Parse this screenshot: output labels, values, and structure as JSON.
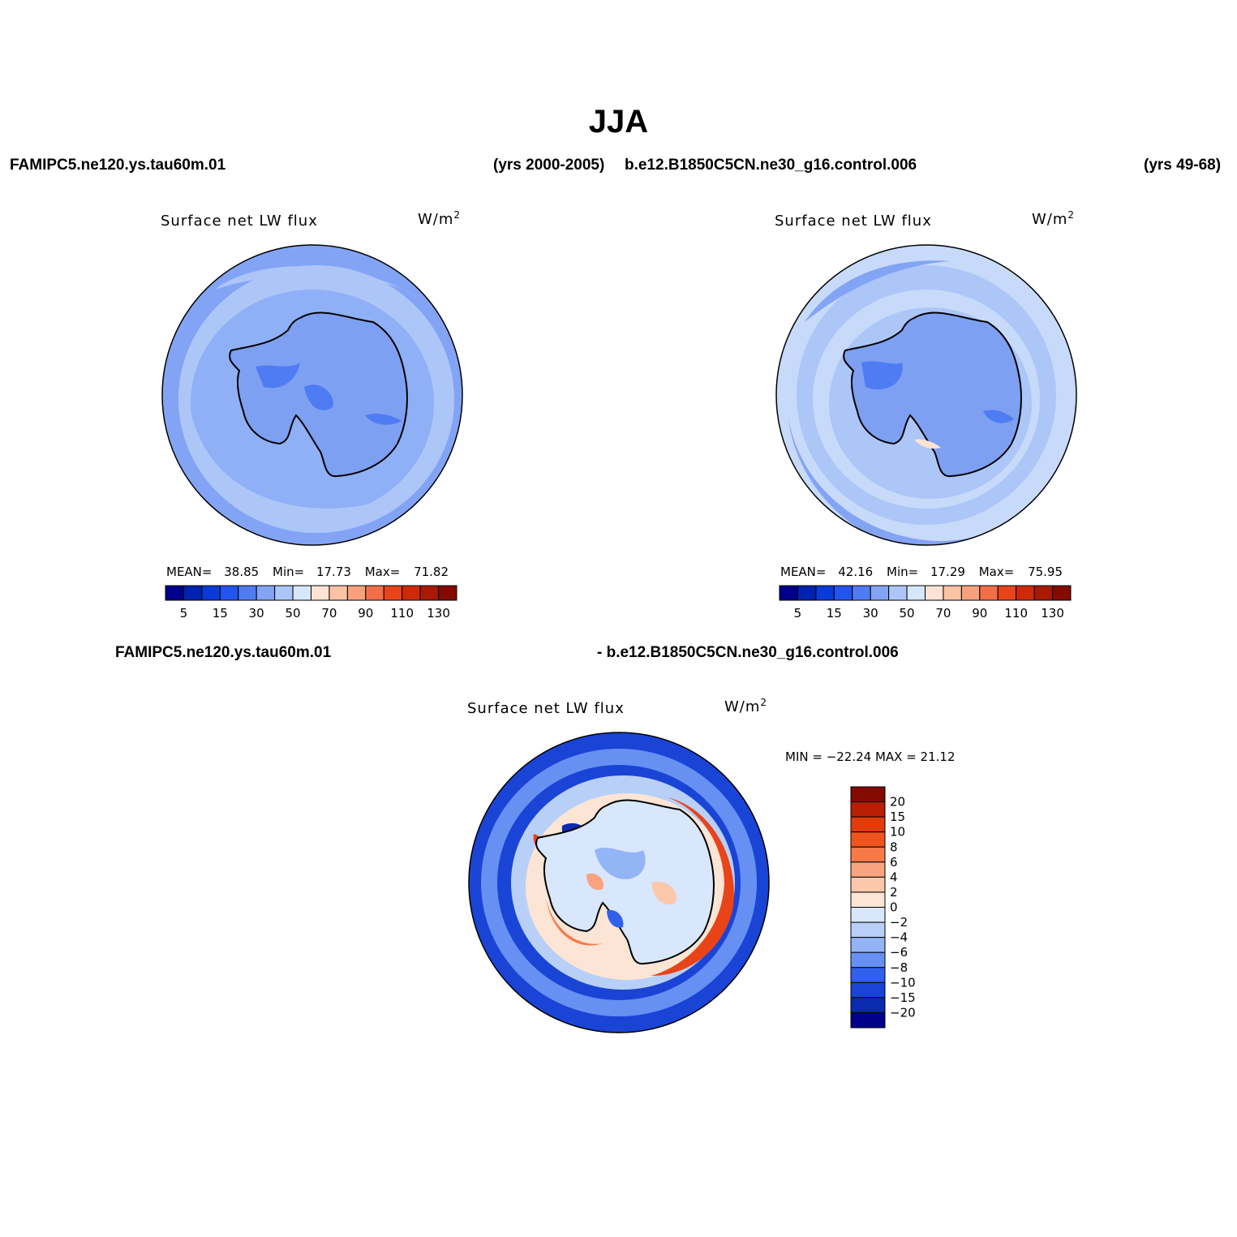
{
  "title": "JJA",
  "top_left_case": "FAMIPC5.ne120.ys.tau60m.01",
  "top_left_years": "(yrs 2000-2005)",
  "top_right_case": "b.e12.B1850C5CN.ne30_g16.control.006",
  "top_right_years": "(yrs 49-68)",
  "diff_left_case": "FAMIPC5.ne120.ys.tau60m.01",
  "diff_right_case": "- b.e12.B1850C5CN.ne30_g16.control.006",
  "panels": [
    {
      "variable": "Surface net LW flux",
      "units": "W/m",
      "units_sup": "2",
      "mean_label": "MEAN=",
      "mean": "38.85",
      "min_label": "Min=",
      "min": "17.73",
      "max_label": "Max=",
      "max": "71.82"
    },
    {
      "variable": "Surface net LW flux",
      "units": "W/m",
      "units_sup": "2",
      "mean_label": "MEAN=",
      "mean": "42.16",
      "min_label": "Min=",
      "min": "17.29",
      "max_label": "Max=",
      "max": "75.95"
    }
  ],
  "diff_panel": {
    "variable": "Surface net LW flux",
    "units": "W/m",
    "units_sup": "2",
    "minmax_text": "MIN = −22.24 MAX =   21.12"
  },
  "colorbar_abs": {
    "colors": [
      "#00008b",
      "#0022b0",
      "#0a3ad8",
      "#2255ee",
      "#4f7cf2",
      "#83a4f5",
      "#adc6f8",
      "#d6e6fb",
      "#fde3d4",
      "#fbc2a4",
      "#f7a07c",
      "#f26e47",
      "#e84418",
      "#cf2a08",
      "#a71a04",
      "#840a00"
    ],
    "tick_labels": [
      "5",
      "15",
      "30",
      "50",
      "70",
      "90",
      "110",
      "130"
    ]
  },
  "colorbar_diff": {
    "colors_top_to_bottom": [
      "#840a00",
      "#b81f05",
      "#e33b0a",
      "#f0541e",
      "#f57a48",
      "#f9a47f",
      "#fbc8ac",
      "#fde5d6",
      "#d8e7fb",
      "#b8d0f8",
      "#93b4f5",
      "#6690f2",
      "#2f61ed",
      "#1a44d6",
      "#0a2ab0",
      "#00008b"
    ],
    "tick_labels": [
      "20",
      "15",
      "10",
      "8",
      "6",
      "4",
      "2",
      "0",
      "−2",
      "−4",
      "−6",
      "−8",
      "−10",
      "−15",
      "−20"
    ]
  },
  "map_colors": {
    "ocean_light": "#c8daf9",
    "ocean_mid": "#adc6f8",
    "ocean_base": "#83a4f5",
    "land": "#7ea0f2",
    "land_dark": "#4f7cf2",
    "diff_blue": "#1a44d6",
    "diff_light": "#d8e7fb",
    "diff_red": "#e84418"
  }
}
